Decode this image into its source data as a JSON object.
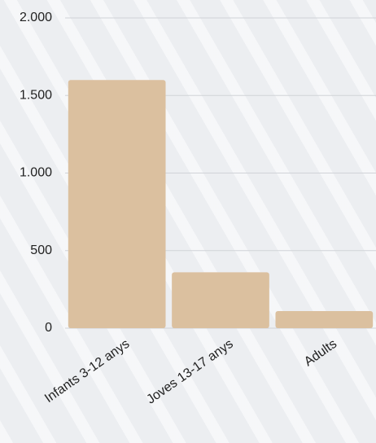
{
  "chart_data": {
    "type": "bar",
    "categories": [
      "Infants 3-12 anys",
      "Joves 13-17 anys",
      "Adults"
    ],
    "values": [
      1600,
      360,
      110
    ],
    "color": "#dbc09f",
    "ylim": [
      0,
      2000
    ],
    "yticks": [
      0,
      500,
      {
        "value": 1000,
        "label": "1.000"
      },
      {
        "value": 1500,
        "label": "1.500"
      },
      {
        "value": 2000,
        "label": "2.000"
      }
    ],
    "grid": true
  }
}
